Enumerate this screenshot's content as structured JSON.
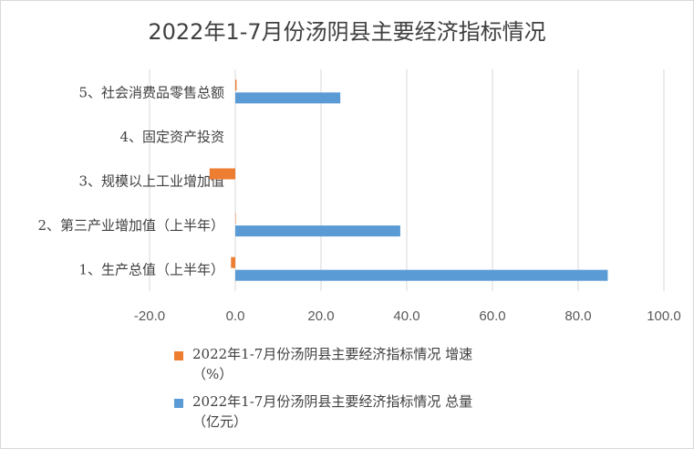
{
  "chart_data": {
    "type": "bar",
    "orientation": "horizontal",
    "title": "2022年1-7月份汤阴县主要经济指标情况",
    "categories": [
      "1、生产总值（上半年）",
      "2、第三产业增加值（上半年）",
      "3、规模以上工业增加值",
      "4、固定资产投资",
      "5、社会消费品零售总额"
    ],
    "series": [
      {
        "name": "2022年1-7月份汤阴县主要经济指标情况 增速（%）",
        "color": "#ed7d31",
        "values": [
          -1.0,
          0.0,
          -6.0,
          null,
          0.3
        ]
      },
      {
        "name": "2022年1-7月份汤阴县主要经济指标情况 总量（亿元）",
        "color": "#5b9bd5",
        "values": [
          86.9,
          38.5,
          null,
          null,
          24.5
        ]
      }
    ],
    "xlim": [
      -20,
      100
    ],
    "xticks": [
      "-20.0",
      "0.0",
      "20.0",
      "40.0",
      "60.0",
      "80.0",
      "100.0"
    ],
    "grid": true,
    "legend_position": "bottom"
  },
  "legend": {
    "growth_line1": "2022年1-7月份汤阴县主要经济指标情况 增速",
    "growth_line2": "（%）",
    "total_line1": "2022年1-7月份汤阴县主要经济指标情况 总量",
    "total_line2": "（亿元）"
  }
}
